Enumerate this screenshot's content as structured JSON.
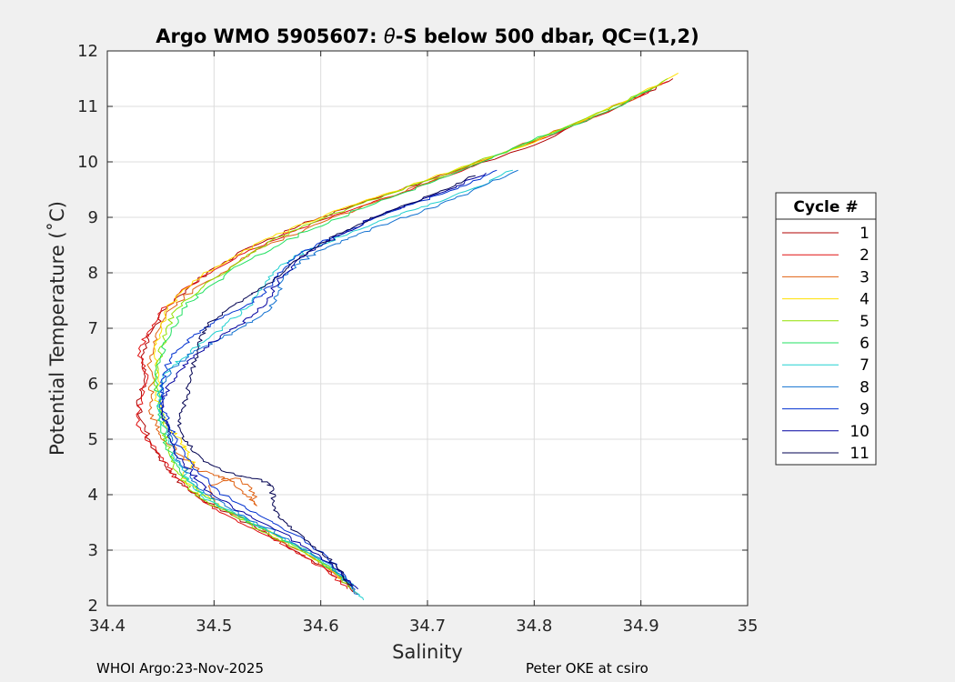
{
  "chart_data": {
    "type": "line",
    "title_prefix": "Argo WMO 5905607: ",
    "title_theta": "θ",
    "title_suffix": "-S below 500 dbar,  QC=(1,2)",
    "xlabel": "Salinity",
    "ylabel": "Potential Temperature (˚C)",
    "xlim": [
      34.4,
      35.0
    ],
    "ylim": [
      2,
      12
    ],
    "xticks": [
      "34.4",
      "34.5",
      "34.6",
      "34.7",
      "34.8",
      "34.9",
      "35"
    ],
    "yticks": [
      "2",
      "3",
      "4",
      "5",
      "6",
      "7",
      "8",
      "9",
      "10",
      "11",
      "12"
    ],
    "grid": true,
    "legend_title": "Cycle #",
    "legend_position": "east-outside",
    "series": [
      {
        "name": "1",
        "color": "#b00000",
        "points": [
          [
            34.93,
            11.5
          ],
          [
            34.88,
            11.0
          ],
          [
            34.8,
            10.3
          ],
          [
            34.72,
            9.8
          ],
          [
            34.66,
            9.4
          ],
          [
            34.6,
            9.0
          ],
          [
            34.55,
            8.6
          ],
          [
            34.51,
            8.2
          ],
          [
            34.48,
            7.8
          ],
          [
            34.455,
            7.35
          ],
          [
            34.44,
            6.9
          ],
          [
            34.432,
            6.5
          ],
          [
            34.435,
            6.0
          ],
          [
            34.428,
            5.6
          ],
          [
            34.435,
            5.2
          ],
          [
            34.445,
            4.8
          ],
          [
            34.455,
            4.5
          ],
          [
            34.47,
            4.2
          ],
          [
            34.49,
            3.9
          ],
          [
            34.52,
            3.6
          ],
          [
            34.55,
            3.3
          ],
          [
            34.58,
            2.95
          ],
          [
            34.61,
            2.6
          ],
          [
            34.63,
            2.25
          ]
        ]
      },
      {
        "name": "2",
        "color": "#e01010",
        "points": [
          [
            34.925,
            11.45
          ],
          [
            34.87,
            10.9
          ],
          [
            34.79,
            10.3
          ],
          [
            34.72,
            9.75
          ],
          [
            34.66,
            9.35
          ],
          [
            34.6,
            8.95
          ],
          [
            34.55,
            8.55
          ],
          [
            34.51,
            8.15
          ],
          [
            34.475,
            7.75
          ],
          [
            34.45,
            7.3
          ],
          [
            34.437,
            6.9
          ],
          [
            34.43,
            6.55
          ],
          [
            34.438,
            6.1
          ],
          [
            34.432,
            5.7
          ],
          [
            34.428,
            5.3
          ],
          [
            34.44,
            4.95
          ],
          [
            34.452,
            4.6
          ],
          [
            34.465,
            4.3
          ],
          [
            34.485,
            3.95
          ],
          [
            34.51,
            3.65
          ],
          [
            34.545,
            3.3
          ],
          [
            34.575,
            3.0
          ],
          [
            34.605,
            2.65
          ],
          [
            34.625,
            2.3
          ]
        ]
      },
      {
        "name": "3",
        "color": "#e06010",
        "points": [
          [
            34.92,
            11.4
          ],
          [
            34.86,
            10.85
          ],
          [
            34.78,
            10.25
          ],
          [
            34.715,
            9.75
          ],
          [
            34.655,
            9.3
          ],
          [
            34.6,
            8.9
          ],
          [
            34.55,
            8.5
          ],
          [
            34.515,
            8.1
          ],
          [
            34.48,
            7.7
          ],
          [
            34.455,
            7.25
          ],
          [
            34.445,
            6.85
          ],
          [
            34.44,
            6.45
          ],
          [
            34.442,
            6.0
          ],
          [
            34.44,
            5.6
          ],
          [
            34.445,
            5.25
          ],
          [
            34.455,
            4.95
          ],
          [
            34.47,
            4.7
          ],
          [
            34.485,
            4.45
          ],
          [
            34.5,
            4.35
          ],
          [
            34.515,
            4.25
          ],
          [
            34.53,
            4.0
          ],
          [
            34.54,
            3.8
          ],
          [
            34.535,
            4.1
          ],
          [
            34.52,
            4.3
          ],
          [
            34.495,
            4.15
          ],
          [
            34.5,
            3.85
          ],
          [
            34.53,
            3.55
          ],
          [
            34.56,
            3.2
          ],
          [
            34.59,
            2.9
          ],
          [
            34.62,
            2.5
          ],
          [
            34.635,
            2.2
          ]
        ]
      },
      {
        "name": "4",
        "color": "#ffe000",
        "points": [
          [
            34.935,
            11.6
          ],
          [
            34.88,
            11.05
          ],
          [
            34.8,
            10.35
          ],
          [
            34.725,
            9.85
          ],
          [
            34.665,
            9.45
          ],
          [
            34.605,
            9.05
          ],
          [
            34.555,
            8.65
          ],
          [
            34.515,
            8.25
          ],
          [
            34.48,
            7.85
          ],
          [
            34.46,
            7.45
          ],
          [
            34.45,
            7.05
          ],
          [
            34.445,
            6.6
          ],
          [
            34.448,
            6.2
          ],
          [
            34.445,
            5.8
          ],
          [
            34.45,
            5.45
          ],
          [
            34.46,
            5.15
          ],
          [
            34.47,
            4.95
          ],
          [
            34.475,
            4.75
          ],
          [
            34.48,
            4.55
          ],
          [
            34.47,
            4.3
          ],
          [
            34.485,
            4.05
          ],
          [
            34.51,
            3.75
          ],
          [
            34.54,
            3.45
          ],
          [
            34.57,
            3.15
          ],
          [
            34.6,
            2.8
          ],
          [
            34.625,
            2.4
          ]
        ]
      },
      {
        "name": "5",
        "color": "#90e000",
        "points": [
          [
            34.925,
            11.5
          ],
          [
            34.87,
            10.95
          ],
          [
            34.79,
            10.3
          ],
          [
            34.72,
            9.8
          ],
          [
            34.66,
            9.4
          ],
          [
            34.605,
            9.0
          ],
          [
            34.555,
            8.6
          ],
          [
            34.52,
            8.15
          ],
          [
            34.49,
            7.75
          ],
          [
            34.465,
            7.35
          ],
          [
            34.455,
            6.95
          ],
          [
            34.45,
            6.55
          ],
          [
            34.445,
            6.1
          ],
          [
            34.45,
            5.7
          ],
          [
            34.452,
            5.3
          ],
          [
            34.455,
            4.95
          ],
          [
            34.46,
            4.6
          ],
          [
            34.47,
            4.3
          ],
          [
            34.48,
            4.05
          ],
          [
            34.495,
            3.85
          ],
          [
            34.52,
            3.6
          ],
          [
            34.55,
            3.3
          ],
          [
            34.58,
            3.0
          ],
          [
            34.61,
            2.65
          ],
          [
            34.63,
            2.3
          ]
        ]
      },
      {
        "name": "6",
        "color": "#20e060",
        "points": [
          [
            34.91,
            11.3
          ],
          [
            34.85,
            10.75
          ],
          [
            34.78,
            10.25
          ],
          [
            34.72,
            9.75
          ],
          [
            34.665,
            9.35
          ],
          [
            34.61,
            8.95
          ],
          [
            34.565,
            8.55
          ],
          [
            34.525,
            8.15
          ],
          [
            34.495,
            7.75
          ],
          [
            34.47,
            7.35
          ],
          [
            34.46,
            6.95
          ],
          [
            34.45,
            6.5
          ],
          [
            34.445,
            6.05
          ],
          [
            34.448,
            5.65
          ],
          [
            34.45,
            5.25
          ],
          [
            34.455,
            4.9
          ],
          [
            34.465,
            4.55
          ],
          [
            34.475,
            4.25
          ],
          [
            34.49,
            4.0
          ],
          [
            34.51,
            3.75
          ],
          [
            34.54,
            3.45
          ],
          [
            34.57,
            3.15
          ],
          [
            34.6,
            2.8
          ],
          [
            34.625,
            2.45
          ]
        ]
      },
      {
        "name": "7",
        "color": "#20d0d0",
        "points": [
          [
            34.78,
            9.85
          ],
          [
            34.74,
            9.5
          ],
          [
            34.7,
            9.2
          ],
          [
            34.665,
            9.0
          ],
          [
            34.63,
            8.75
          ],
          [
            34.6,
            8.5
          ],
          [
            34.575,
            8.3
          ],
          [
            34.555,
            8.0
          ],
          [
            34.545,
            7.7
          ],
          [
            34.53,
            7.35
          ],
          [
            34.51,
            7.05
          ],
          [
            34.49,
            6.75
          ],
          [
            34.47,
            6.45
          ],
          [
            34.455,
            6.2
          ],
          [
            34.448,
            5.85
          ],
          [
            34.45,
            5.45
          ],
          [
            34.455,
            5.1
          ],
          [
            34.462,
            4.75
          ],
          [
            34.47,
            4.45
          ],
          [
            34.48,
            4.15
          ],
          [
            34.495,
            3.9
          ],
          [
            34.52,
            3.65
          ],
          [
            34.55,
            3.35
          ],
          [
            34.58,
            3.05
          ],
          [
            34.61,
            2.7
          ],
          [
            34.63,
            2.35
          ],
          [
            34.64,
            2.1
          ]
        ]
      },
      {
        "name": "8",
        "color": "#1070d0",
        "points": [
          [
            34.785,
            9.85
          ],
          [
            34.75,
            9.55
          ],
          [
            34.71,
            9.2
          ],
          [
            34.67,
            8.95
          ],
          [
            34.635,
            8.7
          ],
          [
            34.605,
            8.45
          ],
          [
            34.58,
            8.2
          ],
          [
            34.565,
            7.9
          ],
          [
            34.56,
            7.6
          ],
          [
            34.55,
            7.3
          ],
          [
            34.53,
            7.05
          ],
          [
            34.505,
            6.8
          ],
          [
            34.48,
            6.55
          ],
          [
            34.462,
            6.3
          ],
          [
            34.452,
            6.0
          ],
          [
            34.45,
            5.65
          ],
          [
            34.455,
            5.3
          ],
          [
            34.46,
            4.95
          ],
          [
            34.468,
            4.6
          ],
          [
            34.478,
            4.3
          ],
          [
            34.49,
            4.05
          ],
          [
            34.51,
            3.8
          ],
          [
            34.54,
            3.5
          ],
          [
            34.57,
            3.2
          ],
          [
            34.6,
            2.85
          ],
          [
            34.625,
            2.45
          ],
          [
            34.635,
            2.2
          ]
        ]
      },
      {
        "name": "9",
        "color": "#0030d0",
        "points": [
          [
            34.765,
            9.85
          ],
          [
            34.73,
            9.55
          ],
          [
            34.695,
            9.3
          ],
          [
            34.66,
            9.05
          ],
          [
            34.63,
            8.8
          ],
          [
            34.6,
            8.55
          ],
          [
            34.575,
            8.25
          ],
          [
            34.56,
            7.95
          ],
          [
            34.545,
            7.6
          ],
          [
            34.525,
            7.35
          ],
          [
            34.5,
            7.1
          ],
          [
            34.48,
            6.85
          ],
          [
            34.465,
            6.6
          ],
          [
            34.455,
            6.3
          ],
          [
            34.45,
            5.95
          ],
          [
            34.452,
            5.6
          ],
          [
            34.458,
            5.25
          ],
          [
            34.465,
            4.95
          ],
          [
            34.475,
            4.65
          ],
          [
            34.488,
            4.35
          ],
          [
            34.505,
            4.05
          ],
          [
            34.53,
            3.75
          ],
          [
            34.56,
            3.45
          ],
          [
            34.59,
            3.1
          ],
          [
            34.615,
            2.75
          ],
          [
            34.63,
            2.3
          ]
        ]
      },
      {
        "name": "10",
        "color": "#0000a0",
        "points": [
          [
            34.755,
            9.8
          ],
          [
            34.72,
            9.5
          ],
          [
            34.685,
            9.25
          ],
          [
            34.65,
            9.0
          ],
          [
            34.62,
            8.7
          ],
          [
            34.595,
            8.45
          ],
          [
            34.575,
            8.15
          ],
          [
            34.56,
            7.85
          ],
          [
            34.55,
            7.5
          ],
          [
            34.535,
            7.2
          ],
          [
            34.515,
            6.95
          ],
          [
            34.495,
            6.7
          ],
          [
            34.478,
            6.45
          ],
          [
            34.465,
            6.15
          ],
          [
            34.455,
            5.85
          ],
          [
            34.452,
            5.5
          ],
          [
            34.457,
            5.15
          ],
          [
            34.462,
            4.85
          ],
          [
            34.472,
            4.55
          ],
          [
            34.485,
            4.25
          ],
          [
            34.502,
            3.95
          ],
          [
            34.53,
            3.65
          ],
          [
            34.56,
            3.35
          ],
          [
            34.59,
            3.0
          ],
          [
            34.615,
            2.65
          ],
          [
            34.635,
            2.3
          ]
        ]
      },
      {
        "name": "11",
        "color": "#000050",
        "points": [
          [
            34.745,
            9.75
          ],
          [
            34.71,
            9.45
          ],
          [
            34.675,
            9.2
          ],
          [
            34.645,
            8.95
          ],
          [
            34.615,
            8.7
          ],
          [
            34.59,
            8.4
          ],
          [
            34.57,
            8.1
          ],
          [
            34.55,
            7.8
          ],
          [
            34.53,
            7.55
          ],
          [
            34.51,
            7.3
          ],
          [
            34.495,
            7.05
          ],
          [
            34.485,
            6.75
          ],
          [
            34.482,
            6.45
          ],
          [
            34.478,
            6.1
          ],
          [
            34.475,
            5.8
          ],
          [
            34.47,
            5.5
          ],
          [
            34.468,
            5.2
          ],
          [
            34.475,
            4.9
          ],
          [
            34.49,
            4.6
          ],
          [
            34.52,
            4.35
          ],
          [
            34.545,
            4.25
          ],
          [
            34.555,
            4.15
          ],
          [
            34.555,
            3.85
          ],
          [
            34.56,
            3.6
          ],
          [
            34.575,
            3.35
          ],
          [
            34.595,
            3.05
          ],
          [
            34.615,
            2.7
          ],
          [
            34.63,
            2.35
          ]
        ]
      }
    ]
  },
  "footer": {
    "left": "WHOI Argo:23-Nov-2025",
    "right": "Peter OKE at csiro"
  }
}
